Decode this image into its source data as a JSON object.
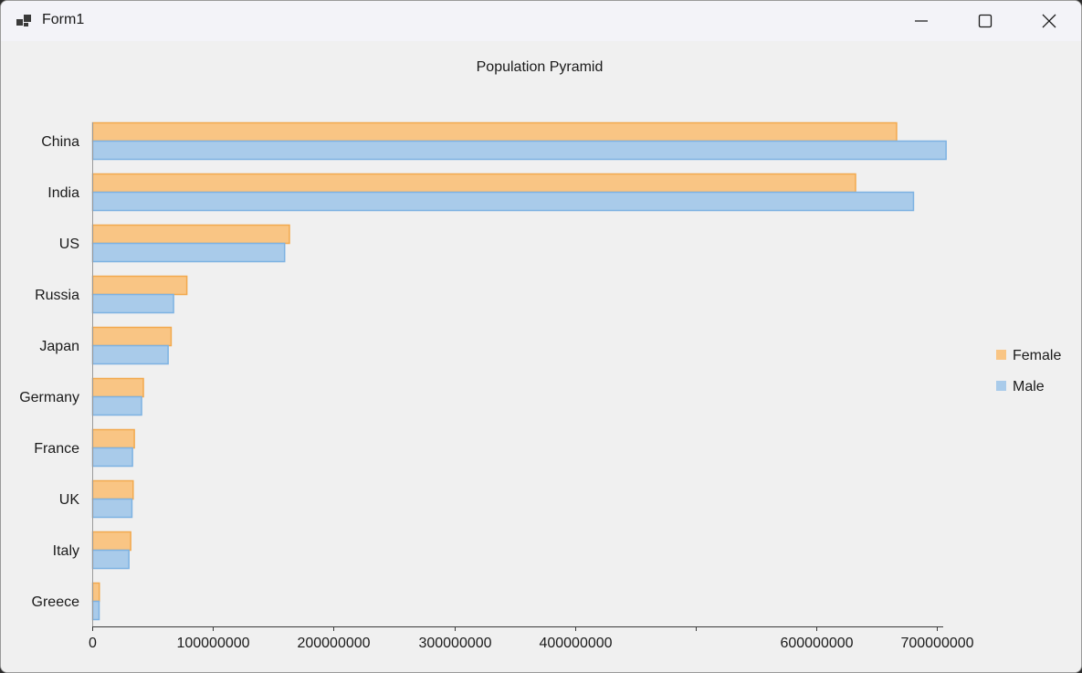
{
  "window": {
    "title": "Form1"
  },
  "chart_data": {
    "type": "bar",
    "orientation": "horizontal",
    "title": "Population Pyramid",
    "categories": [
      "China",
      "India",
      "US",
      "Russia",
      "Japan",
      "Germany",
      "France",
      "UK",
      "Italy",
      "Greece"
    ],
    "series": [
      {
        "name": "Female",
        "color": "#f9c584",
        "border": "#f2a94e",
        "values": [
          666000000,
          632000000,
          163000000,
          78000000,
          65000000,
          42000000,
          34500000,
          33500000,
          31500000,
          5500000
        ]
      },
      {
        "name": "Male",
        "color": "#a9cbea",
        "border": "#7db2e2",
        "values": [
          707000000,
          680000000,
          159000000,
          67000000,
          62500000,
          40500000,
          33000000,
          32500000,
          30000000,
          5300000
        ]
      }
    ],
    "xlim": [
      0,
      705000000
    ],
    "xticks": [
      {
        "value": 0,
        "label": "0"
      },
      {
        "value": 100000000,
        "label": "100000000"
      },
      {
        "value": 200000000,
        "label": "200000000"
      },
      {
        "value": 300000000,
        "label": "300000000"
      },
      {
        "value": 400000000,
        "label": "400000000"
      },
      {
        "value": 500000000,
        "label": ""
      },
      {
        "value": 600000000,
        "label": "600000000"
      },
      {
        "value": 700000000,
        "label": "700000000"
      }
    ],
    "legend": [
      "Female",
      "Male"
    ],
    "legend_position": "right",
    "grid": false
  }
}
